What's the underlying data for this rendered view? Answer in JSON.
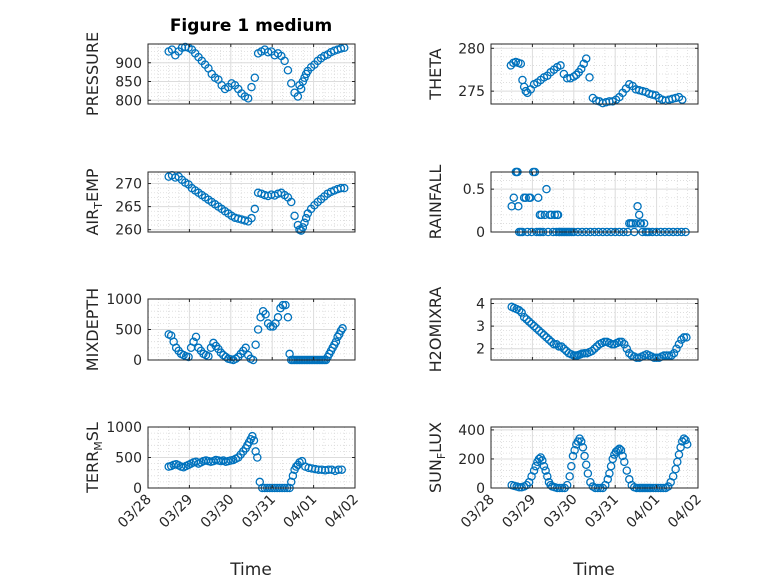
{
  "figure": {
    "title": "Figure 1 medium",
    "xlabel": "Time",
    "colors": {
      "marker": "#0072BD",
      "axis": "#262626",
      "grid": "#d9d9d9",
      "background": "#ffffff"
    },
    "xticks": [
      0,
      1,
      2,
      3,
      4,
      5
    ],
    "xtick_labels": [
      "03/28",
      "03/29",
      "03/30",
      "03/31",
      "04/01",
      "04/02"
    ]
  },
  "chart_data": [
    {
      "type": "scatter",
      "ylabel": "PRESSURE",
      "xlim": [
        0,
        5
      ],
      "ylim": [
        790,
        950
      ],
      "yticks": [
        800,
        850,
        900
      ],
      "ytick_labels": [
        "800",
        "850",
        "900"
      ],
      "x": [
        0.5,
        0.58,
        0.66,
        0.74,
        0.82,
        0.9,
        0.98,
        1.06,
        1.14,
        1.22,
        1.3,
        1.38,
        1.46,
        1.54,
        1.62,
        1.7,
        1.78,
        1.86,
        1.94,
        2.02,
        2.1,
        2.18,
        2.26,
        2.34,
        2.42,
        2.5,
        2.58,
        2.66,
        2.74,
        2.82,
        2.9,
        2.98,
        3.06,
        3.14,
        3.22,
        3.3,
        3.38,
        3.46,
        3.54,
        3.62,
        3.66,
        3.7,
        3.74,
        3.78,
        3.82,
        3.86,
        3.94,
        4.02,
        4.1,
        4.18,
        4.26,
        4.34,
        4.42,
        4.5,
        4.58,
        4.66,
        4.74
      ],
      "y": [
        930,
        935,
        920,
        930,
        940,
        942,
        940,
        935,
        925,
        915,
        905,
        895,
        885,
        870,
        860,
        855,
        840,
        830,
        835,
        845,
        840,
        830,
        818,
        810,
        805,
        835,
        860,
        925,
        930,
        935,
        928,
        930,
        920,
        925,
        918,
        905,
        880,
        845,
        820,
        810,
        840,
        830,
        850,
        860,
        870,
        878,
        888,
        895,
        905,
        912,
        918,
        922,
        928,
        932,
        935,
        938,
        940
      ]
    },
    {
      "type": "scatter",
      "ylabel": "THETA",
      "xlim": [
        0,
        5
      ],
      "ylim": [
        273.5,
        280.5
      ],
      "yticks": [
        275,
        280
      ],
      "ytick_labels": [
        "275",
        "280"
      ],
      "x": [
        0.48,
        0.54,
        0.6,
        0.66,
        0.72,
        0.76,
        0.8,
        0.84,
        0.88,
        0.96,
        1.04,
        1.12,
        1.2,
        1.28,
        1.36,
        1.44,
        1.52,
        1.6,
        1.68,
        1.76,
        1.84,
        1.92,
        2.0,
        2.06,
        2.12,
        2.18,
        2.24,
        2.3,
        2.38,
        2.46,
        2.54,
        2.62,
        2.7,
        2.78,
        2.86,
        2.94,
        3.02,
        3.1,
        3.18,
        3.26,
        3.34,
        3.42,
        3.5,
        3.58,
        3.66,
        3.74,
        3.82,
        3.9,
        3.98,
        4.06,
        4.14,
        4.22,
        4.3,
        4.38,
        4.46,
        4.54,
        4.62
      ],
      "y": [
        278.0,
        278.3,
        278.4,
        278.3,
        278.2,
        276.3,
        275.5,
        275.0,
        274.8,
        275.2,
        275.8,
        276.0,
        276.3,
        276.6,
        276.8,
        277.2,
        277.5,
        277.8,
        278.0,
        277.0,
        276.5,
        276.5,
        276.7,
        276.9,
        277.2,
        277.6,
        278.2,
        278.8,
        276.6,
        274.2,
        273.9,
        273.8,
        273.6,
        273.7,
        273.8,
        273.8,
        274.0,
        274.3,
        274.8,
        275.3,
        275.8,
        275.6,
        275.2,
        275.1,
        275.0,
        274.9,
        274.7,
        274.6,
        274.5,
        274.2,
        274.0,
        273.9,
        274.0,
        274.1,
        274.2,
        274.3,
        274.0
      ]
    },
    {
      "type": "scatter",
      "ylabel": "AIR_TEMP",
      "xlim": [
        0,
        5
      ],
      "ylim": [
        259.5,
        272.5
      ],
      "yticks": [
        260,
        265,
        270
      ],
      "ytick_labels": [
        "260",
        "265",
        "270"
      ],
      "x": [
        0.5,
        0.58,
        0.66,
        0.74,
        0.82,
        0.9,
        0.98,
        1.06,
        1.14,
        1.22,
        1.3,
        1.38,
        1.46,
        1.54,
        1.62,
        1.7,
        1.78,
        1.86,
        1.94,
        2.02,
        2.1,
        2.18,
        2.26,
        2.34,
        2.42,
        2.5,
        2.58,
        2.66,
        2.74,
        2.82,
        2.9,
        2.98,
        3.06,
        3.14,
        3.22,
        3.3,
        3.38,
        3.46,
        3.54,
        3.62,
        3.66,
        3.7,
        3.74,
        3.78,
        3.82,
        3.86,
        3.94,
        4.02,
        4.1,
        4.18,
        4.26,
        4.34,
        4.42,
        4.5,
        4.58,
        4.66,
        4.74
      ],
      "y": [
        271.5,
        271.8,
        271.3,
        271.5,
        270.8,
        270.2,
        269.8,
        269.0,
        268.5,
        268.0,
        267.5,
        267.0,
        266.5,
        266.0,
        265.5,
        265.0,
        264.5,
        264.0,
        263.5,
        263.0,
        262.6,
        262.4,
        262.2,
        262.0,
        261.8,
        262.5,
        264.5,
        268.0,
        267.8,
        267.5,
        267.3,
        267.6,
        267.4,
        267.8,
        268.0,
        267.5,
        267.0,
        266.0,
        263.0,
        261.0,
        260.0,
        259.8,
        260.5,
        261.5,
        262.5,
        263.5,
        264.5,
        265.3,
        266.0,
        266.6,
        267.2,
        267.8,
        268.2,
        268.5,
        268.8,
        269.0,
        269.0
      ]
    },
    {
      "type": "scatter",
      "ylabel": "RAINFALL",
      "xlim": [
        0,
        5
      ],
      "ylim": [
        0,
        0.7
      ],
      "yticks": [
        0,
        0.5
      ],
      "ytick_labels": [
        "0",
        "0.5"
      ],
      "x": [
        0.5,
        0.55,
        0.6,
        0.62,
        0.64,
        0.66,
        0.68,
        0.72,
        0.76,
        0.8,
        0.84,
        0.88,
        0.92,
        0.95,
        0.98,
        1.02,
        1.06,
        1.1,
        1.14,
        1.16,
        1.18,
        1.2,
        1.22,
        1.26,
        1.3,
        1.34,
        1.38,
        1.42,
        1.46,
        1.5,
        1.54,
        1.58,
        1.6,
        1.62,
        1.64,
        1.66,
        1.7,
        1.74,
        1.78,
        1.82,
        1.86,
        1.9,
        1.95,
        2.0,
        2.1,
        2.2,
        2.3,
        2.4,
        2.5,
        2.6,
        2.7,
        2.8,
        2.9,
        3.0,
        3.1,
        3.2,
        3.3,
        3.34,
        3.38,
        3.42,
        3.46,
        3.5,
        3.54,
        3.58,
        3.6,
        3.62,
        3.66,
        3.7,
        3.74,
        3.78,
        3.82,
        3.9,
        4.0,
        4.1,
        4.2,
        4.3,
        4.4,
        4.5,
        4.6,
        4.7
      ],
      "y": [
        0.3,
        0.4,
        0.7,
        0.7,
        0.7,
        0.3,
        0,
        0,
        0,
        0.4,
        0.4,
        0,
        0.4,
        0.4,
        0,
        0.7,
        0.7,
        0,
        0.4,
        0,
        0.2,
        0,
        0.2,
        0,
        0.2,
        0.5,
        0,
        0.2,
        0.2,
        0,
        0.2,
        0,
        0.2,
        0.2,
        0,
        0,
        0,
        0,
        0,
        0,
        0,
        0,
        0,
        0,
        0,
        0,
        0,
        0,
        0,
        0,
        0,
        0,
        0,
        0,
        0,
        0,
        0,
        0.1,
        0.1,
        0.1,
        0,
        0.1,
        0.3,
        0.2,
        0.1,
        0.1,
        0,
        0.1,
        0,
        0,
        0,
        0,
        0,
        0,
        0,
        0,
        0,
        0,
        0,
        0
      ]
    },
    {
      "type": "scatter",
      "ylabel": "MIXDEPTH",
      "xlim": [
        0,
        5
      ],
      "ylim": [
        0,
        1000
      ],
      "yticks": [
        0,
        500,
        1000
      ],
      "ytick_labels": [
        "0",
        "500",
        "1000"
      ],
      "x": [
        0.5,
        0.56,
        0.62,
        0.68,
        0.74,
        0.8,
        0.86,
        0.92,
        0.98,
        1.04,
        1.1,
        1.16,
        1.22,
        1.28,
        1.34,
        1.4,
        1.46,
        1.52,
        1.58,
        1.64,
        1.7,
        1.76,
        1.82,
        1.88,
        1.94,
        2.0,
        2.06,
        2.12,
        2.18,
        2.24,
        2.3,
        2.36,
        2.42,
        2.48,
        2.54,
        2.6,
        2.66,
        2.72,
        2.78,
        2.84,
        2.9,
        2.96,
        3.02,
        3.08,
        3.14,
        3.2,
        3.26,
        3.32,
        3.38,
        3.42,
        3.46,
        3.5,
        3.54,
        3.58,
        3.62,
        3.66,
        3.7,
        3.74,
        3.78,
        3.82,
        3.86,
        3.9,
        3.94,
        3.98,
        4.02,
        4.06,
        4.1,
        4.14,
        4.18,
        4.22,
        4.26,
        4.3,
        4.34,
        4.38,
        4.42,
        4.46,
        4.5,
        4.54,
        4.58,
        4.62,
        4.66,
        4.7
      ],
      "y": [
        420,
        400,
        300,
        200,
        150,
        100,
        80,
        60,
        50,
        200,
        300,
        380,
        200,
        150,
        100,
        80,
        60,
        200,
        280,
        230,
        180,
        120,
        80,
        50,
        20,
        10,
        0,
        20,
        50,
        100,
        150,
        200,
        80,
        20,
        0,
        250,
        500,
        700,
        800,
        750,
        600,
        550,
        550,
        600,
        700,
        850,
        900,
        900,
        700,
        100,
        0,
        0,
        0,
        0,
        0,
        0,
        0,
        0,
        0,
        0,
        0,
        0,
        0,
        0,
        0,
        0,
        0,
        0,
        0,
        0,
        0,
        0,
        50,
        100,
        150,
        200,
        250,
        300,
        380,
        420,
        480,
        520
      ]
    },
    {
      "type": "scatter",
      "ylabel": "H2OMIXRA",
      "xlim": [
        0,
        5
      ],
      "ylim": [
        1.5,
        4.2
      ],
      "yticks": [
        2,
        3,
        4
      ],
      "ytick_labels": [
        "2",
        "3",
        "4"
      ],
      "x": [
        0.5,
        0.56,
        0.62,
        0.68,
        0.74,
        0.8,
        0.86,
        0.92,
        0.98,
        1.04,
        1.1,
        1.16,
        1.22,
        1.28,
        1.34,
        1.4,
        1.46,
        1.52,
        1.58,
        1.64,
        1.7,
        1.76,
        1.82,
        1.88,
        1.94,
        2.0,
        2.04,
        2.08,
        2.12,
        2.16,
        2.2,
        2.26,
        2.32,
        2.38,
        2.44,
        2.5,
        2.56,
        2.62,
        2.68,
        2.74,
        2.8,
        2.86,
        2.92,
        2.98,
        3.04,
        3.1,
        3.16,
        3.22,
        3.28,
        3.34,
        3.4,
        3.46,
        3.52,
        3.58,
        3.64,
        3.7,
        3.76,
        3.82,
        3.88,
        3.94,
        4.0,
        4.06,
        4.12,
        4.18,
        4.24,
        4.3,
        4.36,
        4.42,
        4.48,
        4.54,
        4.6,
        4.66,
        4.72
      ],
      "y": [
        3.85,
        3.8,
        3.75,
        3.7,
        3.6,
        3.4,
        3.3,
        3.2,
        3.1,
        3.0,
        2.9,
        2.8,
        2.7,
        2.6,
        2.5,
        2.4,
        2.3,
        2.2,
        2.2,
        2.1,
        2.1,
        2.0,
        1.9,
        1.8,
        1.75,
        1.7,
        1.7,
        1.7,
        1.72,
        1.75,
        1.78,
        1.8,
        1.8,
        1.85,
        1.9,
        2.0,
        2.1,
        2.2,
        2.25,
        2.3,
        2.3,
        2.25,
        2.2,
        2.2,
        2.25,
        2.3,
        2.3,
        2.2,
        2.0,
        1.8,
        1.7,
        1.65,
        1.6,
        1.6,
        1.65,
        1.7,
        1.75,
        1.7,
        1.65,
        1.6,
        1.6,
        1.6,
        1.65,
        1.7,
        1.7,
        1.7,
        1.7,
        1.8,
        2.0,
        2.2,
        2.4,
        2.5,
        2.5
      ]
    },
    {
      "type": "scatter",
      "ylabel": "TERR_MSL",
      "xlim": [
        0,
        5
      ],
      "ylim": [
        0,
        1000
      ],
      "yticks": [
        0,
        500,
        1000
      ],
      "ytick_labels": [
        "0",
        "500",
        "1000"
      ],
      "x": [
        0.5,
        0.56,
        0.62,
        0.68,
        0.74,
        0.8,
        0.86,
        0.92,
        0.98,
        1.04,
        1.1,
        1.16,
        1.22,
        1.28,
        1.34,
        1.4,
        1.46,
        1.52,
        1.58,
        1.64,
        1.7,
        1.76,
        1.82,
        1.88,
        1.94,
        2.0,
        2.06,
        2.12,
        2.18,
        2.24,
        2.3,
        2.36,
        2.4,
        2.44,
        2.48,
        2.52,
        2.56,
        2.6,
        2.64,
        2.7,
        2.76,
        2.82,
        2.88,
        2.94,
        3.0,
        3.06,
        3.12,
        3.18,
        3.24,
        3.3,
        3.36,
        3.42,
        3.46,
        3.5,
        3.54,
        3.58,
        3.62,
        3.66,
        3.72,
        3.8,
        3.88,
        3.96,
        4.04,
        4.12,
        4.2,
        4.28,
        4.36,
        4.44,
        4.52,
        4.6,
        4.68
      ],
      "y": [
        350,
        360,
        380,
        390,
        370,
        350,
        340,
        360,
        380,
        400,
        420,
        430,
        400,
        420,
        440,
        450,
        440,
        430,
        440,
        460,
        450,
        440,
        450,
        430,
        440,
        450,
        460,
        480,
        500,
        550,
        600,
        650,
        700,
        750,
        800,
        850,
        780,
        600,
        500,
        100,
        0,
        0,
        0,
        0,
        0,
        0,
        0,
        0,
        0,
        0,
        0,
        0,
        100,
        200,
        300,
        350,
        380,
        420,
        440,
        350,
        330,
        320,
        310,
        300,
        300,
        290,
        300,
        300,
        280,
        300,
        300
      ]
    },
    {
      "type": "scatter",
      "ylabel": "SUN_FLUX",
      "xlim": [
        0,
        5
      ],
      "ylim": [
        0,
        420
      ],
      "yticks": [
        0,
        200,
        400
      ],
      "ytick_labels": [
        "0",
        "200",
        "400"
      ],
      "x": [
        0.5,
        0.56,
        0.62,
        0.68,
        0.74,
        0.8,
        0.86,
        0.92,
        0.98,
        1.04,
        1.08,
        1.12,
        1.16,
        1.2,
        1.24,
        1.28,
        1.32,
        1.36,
        1.4,
        1.44,
        1.48,
        1.54,
        1.6,
        1.66,
        1.72,
        1.78,
        1.84,
        1.9,
        1.94,
        1.98,
        2.02,
        2.06,
        2.1,
        2.14,
        2.18,
        2.22,
        2.26,
        2.3,
        2.34,
        2.4,
        2.46,
        2.52,
        2.58,
        2.64,
        2.7,
        2.76,
        2.82,
        2.86,
        2.9,
        2.94,
        2.98,
        3.02,
        3.06,
        3.1,
        3.14,
        3.18,
        3.22,
        3.28,
        3.34,
        3.4,
        3.46,
        3.52,
        3.58,
        3.62,
        3.66,
        3.7,
        3.74,
        3.78,
        3.82,
        3.86,
        3.92,
        3.98,
        4.04,
        4.1,
        4.16,
        4.22,
        4.28,
        4.34,
        4.4,
        4.46,
        4.5,
        4.54,
        4.58,
        4.62,
        4.66,
        4.7,
        4.74
      ],
      "y": [
        20,
        15,
        10,
        5,
        5,
        10,
        20,
        40,
        80,
        120,
        150,
        180,
        200,
        210,
        190,
        150,
        120,
        80,
        40,
        20,
        10,
        5,
        0,
        0,
        0,
        0,
        20,
        80,
        150,
        220,
        260,
        300,
        320,
        340,
        320,
        280,
        220,
        160,
        100,
        40,
        10,
        0,
        0,
        0,
        0,
        20,
        60,
        100,
        150,
        200,
        230,
        250,
        260,
        270,
        260,
        220,
        180,
        120,
        60,
        20,
        5,
        0,
        0,
        0,
        0,
        0,
        0,
        0,
        0,
        0,
        0,
        0,
        0,
        0,
        0,
        0,
        10,
        40,
        80,
        130,
        180,
        230,
        280,
        320,
        340,
        330,
        300
      ]
    }
  ]
}
